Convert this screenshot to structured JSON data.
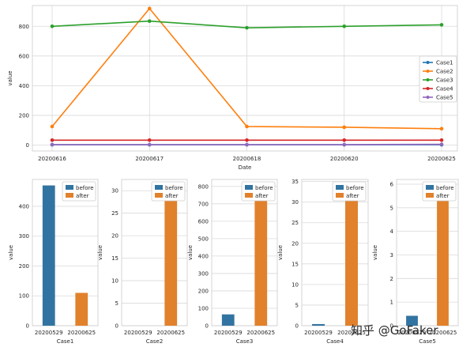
{
  "chart_data": [
    {
      "type": "line",
      "x": [
        "20200616",
        "20200617",
        "20200618",
        "20200620",
        "20200625"
      ],
      "xlabel": "Date",
      "ylabel": "value",
      "ylim": [
        -40,
        940
      ],
      "yticks": [
        0,
        200,
        400,
        600,
        800
      ],
      "grid": true,
      "legend_position": "right",
      "series": [
        {
          "name": "Case1",
          "color": "#1f77b4",
          "values": [
            2,
            2,
            2,
            2,
            2
          ]
        },
        {
          "name": "Case2",
          "color": "#ff7f0e",
          "values": [
            125,
            920,
            125,
            120,
            110
          ]
        },
        {
          "name": "Case3",
          "color": "#2ca02c",
          "values": [
            800,
            835,
            790,
            800,
            810
          ]
        },
        {
          "name": "Case4",
          "color": "#d62728",
          "values": [
            33,
            33,
            33,
            33,
            33
          ]
        },
        {
          "name": "Case5",
          "color": "#9467bd",
          "values": [
            3,
            3,
            3,
            3,
            5
          ]
        }
      ]
    },
    {
      "type": "bar",
      "categories": [
        "20200529",
        "20200625"
      ],
      "xlabel": "Case1",
      "ylabel": "value",
      "ylim": [
        0,
        490
      ],
      "yticks": [
        0,
        100,
        200,
        300,
        400
      ],
      "grid": true,
      "legend_position": "top-right",
      "series": [
        {
          "name": "before",
          "color": "#3274a1",
          "values": [
            470,
            null
          ]
        },
        {
          "name": "after",
          "color": "#e1812c",
          "values": [
            null,
            110
          ]
        }
      ]
    },
    {
      "type": "bar",
      "categories": [
        "20200529",
        "20200625"
      ],
      "xlabel": "Case2",
      "ylabel": "value",
      "ylim": [
        0,
        32.5
      ],
      "yticks": [
        0,
        5,
        10,
        15,
        20,
        25,
        30
      ],
      "grid": true,
      "legend_position": "top-right",
      "series": [
        {
          "name": "before",
          "color": "#3274a1",
          "values": [
            0,
            null
          ]
        },
        {
          "name": "after",
          "color": "#e1812c",
          "values": [
            null,
            31
          ]
        }
      ]
    },
    {
      "type": "bar",
      "categories": [
        "20200529",
        "20200625"
      ],
      "xlabel": "Case3",
      "ylabel": "value",
      "ylim": [
        0,
        840
      ],
      "yticks": [
        0,
        100,
        200,
        300,
        400,
        500,
        600,
        700,
        800
      ],
      "grid": true,
      "legend_position": "top-right",
      "series": [
        {
          "name": "before",
          "color": "#3274a1",
          "values": [
            65,
            null
          ]
        },
        {
          "name": "after",
          "color": "#e1812c",
          "values": [
            null,
            810
          ]
        }
      ]
    },
    {
      "type": "bar",
      "categories": [
        "20200529",
        "20200625"
      ],
      "xlabel": "Case4",
      "ylabel": "value",
      "ylim": [
        0,
        35.5
      ],
      "yticks": [
        0,
        5,
        10,
        15,
        20,
        25,
        30,
        35
      ],
      "grid": true,
      "legend_position": "top-right",
      "series": [
        {
          "name": "before",
          "color": "#3274a1",
          "values": [
            0.4,
            null
          ]
        },
        {
          "name": "after",
          "color": "#e1812c",
          "values": [
            null,
            34
          ]
        }
      ]
    },
    {
      "type": "bar",
      "categories": [
        "20200529",
        "20200625"
      ],
      "xlabel": "Case5",
      "ylabel": "value",
      "ylim": [
        0,
        6.2
      ],
      "yticks": [
        0,
        1,
        2,
        3,
        4,
        5,
        6
      ],
      "grid": true,
      "legend_position": "top-right",
      "series": [
        {
          "name": "before",
          "color": "#3274a1",
          "values": [
            0.42,
            null
          ]
        },
        {
          "name": "after",
          "color": "#e1812c",
          "values": [
            null,
            5.9
          ]
        }
      ]
    }
  ],
  "watermark": "知乎 @GoFaker"
}
